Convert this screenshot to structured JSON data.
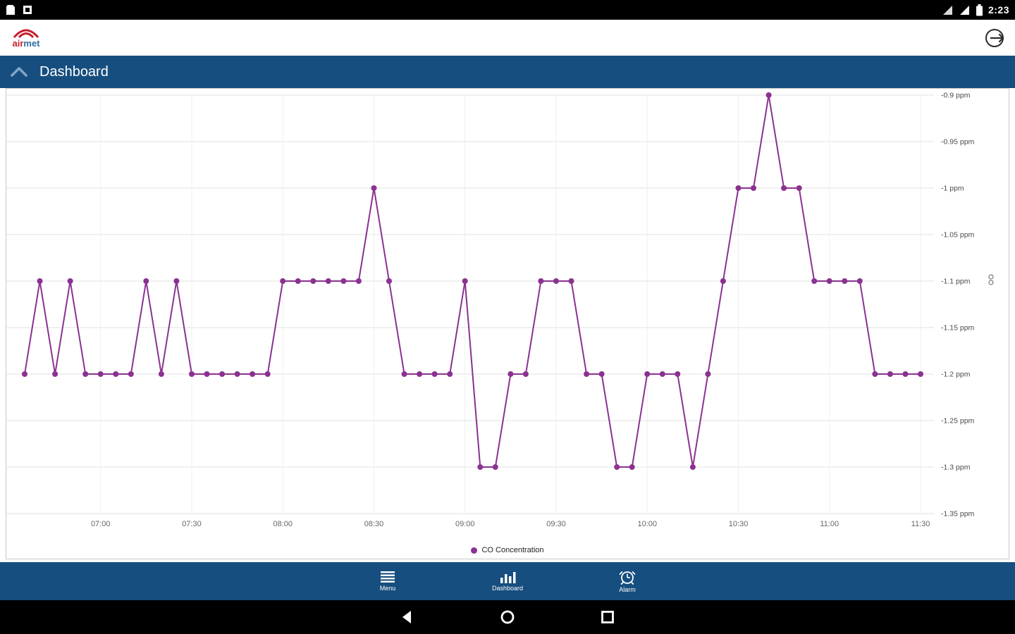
{
  "status_bar": {
    "time": "2:23",
    "left_icons": [
      "notification-icon",
      "notification-icon"
    ],
    "right_icons": [
      "network-warning-icon",
      "signal-icon",
      "battery-icon"
    ]
  },
  "header": {
    "logo_air": "air",
    "logo_met": "met"
  },
  "nav_bar": {
    "title": "Dashboard"
  },
  "chart_data": {
    "type": "line",
    "title": "",
    "xlabel": "",
    "ylabel": "",
    "unit": "ppm",
    "grid": true,
    "legend": {
      "label": "CO Concentration",
      "position": "bottom"
    },
    "ylim": [
      -1.35,
      -0.9
    ],
    "yticks": [
      -0.9,
      -0.95,
      -1,
      -1.05,
      -1.1,
      -1.15,
      -1.2,
      -1.25,
      -1.3,
      -1.35
    ],
    "ytick_labels": [
      "-0.9 ppm",
      "-0.95 ppm",
      "-1 ppm",
      "-1.05 ppm",
      "-1.1 ppm",
      "-1.15 ppm",
      "-1.2 ppm",
      "-1.25 ppm",
      "-1.3 ppm",
      "-1.35 ppm"
    ],
    "xticks": [
      "07:00",
      "07:30",
      "08:00",
      "08:30",
      "09:00",
      "09:30",
      "10:00",
      "10:30",
      "11:00",
      "11:30"
    ],
    "series": [
      {
        "name": "CO Concentration",
        "color": "#8b3191",
        "x": [
          "06:35",
          "06:40",
          "06:45",
          "06:50",
          "06:55",
          "07:00",
          "07:05",
          "07:10",
          "07:15",
          "07:20",
          "07:25",
          "07:30",
          "07:35",
          "07:40",
          "07:45",
          "07:50",
          "07:55",
          "08:00",
          "08:05",
          "08:10",
          "08:15",
          "08:20",
          "08:25",
          "08:30",
          "08:35",
          "08:40",
          "08:45",
          "08:50",
          "08:55",
          "09:00",
          "09:05",
          "09:10",
          "09:15",
          "09:20",
          "09:25",
          "09:30",
          "09:35",
          "09:40",
          "09:45",
          "09:50",
          "09:55",
          "10:00",
          "10:05",
          "10:10",
          "10:15",
          "10:20",
          "10:25",
          "10:30",
          "10:35",
          "10:40",
          "10:45",
          "10:50",
          "10:55",
          "11:00",
          "11:05",
          "11:10",
          "11:15",
          "11:20",
          "11:25",
          "11:30"
        ],
        "values": [
          -1.2,
          -1.1,
          -1.2,
          -1.1,
          -1.2,
          -1.2,
          -1.2,
          -1.2,
          -1.1,
          -1.2,
          -1.1,
          -1.2,
          -1.2,
          -1.2,
          -1.2,
          -1.2,
          -1.2,
          -1.1,
          -1.1,
          -1.1,
          -1.1,
          -1.1,
          -1.1,
          -1.0,
          -1.1,
          -1.2,
          -1.2,
          -1.2,
          -1.2,
          -1.1,
          -1.3,
          -1.3,
          -1.2,
          -1.2,
          -1.1,
          -1.1,
          -1.1,
          -1.2,
          -1.2,
          -1.3,
          -1.3,
          -1.2,
          -1.2,
          -1.2,
          -1.3,
          -1.2,
          -1.1,
          -1.0,
          -1.0,
          -0.9,
          -1.0,
          -1.0,
          -1.1,
          -1.1,
          -1.1,
          -1.1,
          -1.2,
          -1.2,
          -1.2,
          -1.2
        ]
      }
    ]
  },
  "bottom_nav": {
    "items": [
      {
        "label": "Menu",
        "icon": "menu-icon"
      },
      {
        "label": "Dashboard",
        "icon": "dashboard-chart-icon"
      },
      {
        "label": "Alarm",
        "icon": "alarm-icon"
      }
    ]
  },
  "system_nav": {
    "items": [
      "back",
      "home",
      "recents"
    ]
  },
  "colors": {
    "primary_blue": "#164e7f",
    "line_purple": "#8b3191",
    "gridline": "#e2e2e2"
  }
}
